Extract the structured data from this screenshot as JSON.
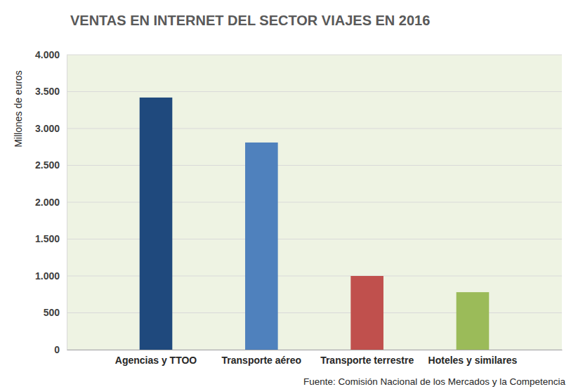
{
  "chart_data": {
    "type": "bar",
    "title": "VENTAS EN INTERNET DEL SECTOR VIAJES EN 2016",
    "y_label": "Millones de euros",
    "annotations": [
      "Fuente: Comisión Nacional de los Mercados y la Competencia"
    ],
    "categories": [
      "Agencias y TTOO",
      "Transporte aéreo",
      "Transporte terrestre",
      "Hoteles y similares"
    ],
    "values": [
      3420,
      2810,
      1000,
      780
    ],
    "colors": [
      "#1f497d",
      "#4f81bd",
      "#c0504d",
      "#9bbb59"
    ],
    "ylim": [
      0,
      4000
    ],
    "yticks": [
      0,
      500,
      {
        "value": 1000,
        "label": "1.000"
      },
      {
        "value": 1500,
        "label": "1.500"
      },
      {
        "value": 2000,
        "label": "2.000"
      },
      {
        "value": 2500,
        "label": "2.500"
      },
      {
        "value": 3000,
        "label": "3.000"
      },
      {
        "value": 3500,
        "label": "3.500"
      },
      {
        "value": 4000,
        "label": "4.000"
      }
    ],
    "grid": true
  }
}
